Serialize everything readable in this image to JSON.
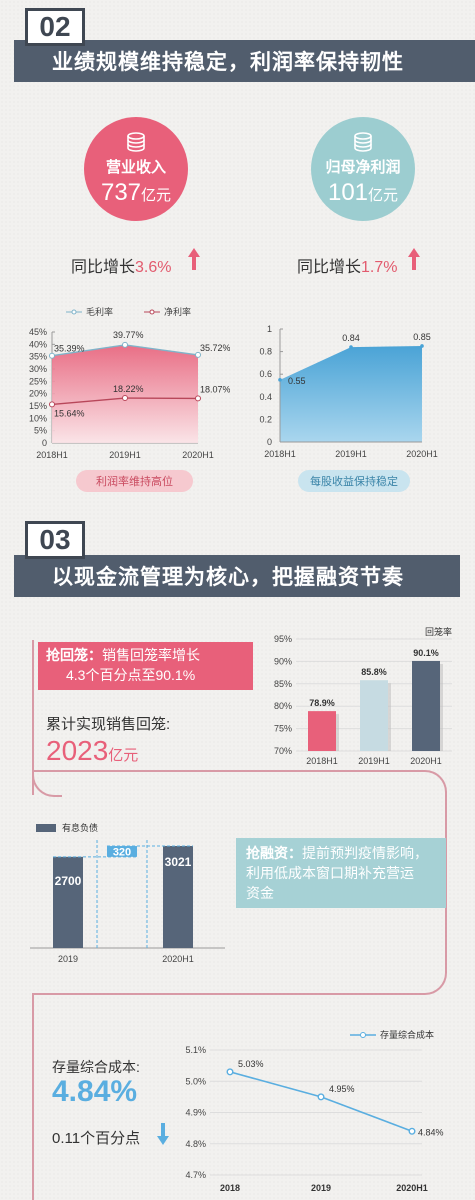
{
  "section2": {
    "number": "02",
    "title": "业绩规模维持稳定，利润率保持韧性",
    "revenue": {
      "label": "营业收入",
      "value": "737",
      "unit": "亿元",
      "yoy_label": "同比增长",
      "yoy_value": "3.6%"
    },
    "profit": {
      "label": "归母净利润",
      "value": "101",
      "unit": "亿元",
      "yoy_label": "同比增长",
      "yoy_value": "1.7%"
    },
    "margin_caption": "利润率维持高位",
    "eps_caption": "每股收益保持稳定"
  },
  "section3": {
    "number": "03",
    "title": "以现金流管理为核心，把握融资节奏",
    "collection": {
      "tag": "抢回笼：",
      "text_line1": "销售回笼率增长",
      "text_line2": "4.3个百分点至90.1%",
      "cum_label": "累计实现销售回笼:",
      "cum_value": "2023",
      "cum_unit": "亿元"
    },
    "financing": {
      "tag": "抢融资：",
      "text_line1": "提前预判疫情影响，",
      "text_line2": "利用低成本窗口期补充营运",
      "text_line3": "资金"
    },
    "cost": {
      "label": "存量综合成本:",
      "value": "4.84%",
      "change": "0.11个百分点"
    }
  },
  "chart_data": [
    {
      "type": "line",
      "x": [
        "2018H1",
        "2019H1",
        "2020H1"
      ],
      "series": [
        {
          "name": "毛利率",
          "values": [
            35.39,
            39.77,
            35.72
          ],
          "labels": [
            "35.39%",
            "39.77%",
            "35.72%"
          ]
        },
        {
          "name": "净利率",
          "values": [
            15.64,
            18.22,
            18.07
          ],
          "labels": [
            "15.64%",
            "18.22%",
            "18.07%"
          ]
        }
      ],
      "yticks": [
        "45%",
        "40%",
        "35%",
        "30%",
        "25%",
        "20%",
        "15%",
        "10%",
        "5%",
        "0"
      ],
      "ylim": [
        0,
        45
      ],
      "legend": "top"
    },
    {
      "type": "area",
      "x": [
        "2018H1",
        "2019H1",
        "2020H1"
      ],
      "values": [
        0.55,
        0.84,
        0.85
      ],
      "labels": [
        "0.55",
        "0.84",
        "0.85"
      ],
      "yticks": [
        "1",
        "0.8",
        "0.6",
        "0.4",
        "0.2",
        "0"
      ],
      "ylim": [
        0,
        1
      ]
    },
    {
      "type": "bar",
      "title": "回笼率",
      "categories": [
        "2018H1",
        "2019H1",
        "2020H1"
      ],
      "values": [
        78.9,
        85.8,
        90.1
      ],
      "labels": [
        "78.9%",
        "85.8%",
        "90.1%"
      ],
      "yticks": [
        "95%",
        "90%",
        "85%",
        "80%",
        "75%",
        "70%"
      ],
      "ylim": [
        70,
        95
      ],
      "colors": [
        "#e8607a",
        "#c6dbe2",
        "#566579"
      ]
    },
    {
      "type": "bar",
      "legend_label": "有息负债",
      "categories": [
        "2019",
        "",
        "2020H1"
      ],
      "values": [
        2700,
        320,
        3021
      ],
      "labels": [
        "2700",
        "320",
        "3021"
      ],
      "colors": [
        "#566579",
        "#5aaee0",
        "#566579"
      ]
    },
    {
      "type": "line",
      "x": [
        "2018",
        "2019",
        "2020H1"
      ],
      "series": [
        {
          "name": "存量综合成本",
          "values": [
            5.03,
            4.95,
            4.84
          ],
          "labels": [
            "5.03%",
            "4.95%",
            "4.84%"
          ]
        }
      ],
      "yticks": [
        "5.1%",
        "5.0%",
        "4.9%",
        "4.8%",
        "4.7%"
      ],
      "ylim": [
        4.7,
        5.1
      ],
      "legend": "top-right"
    }
  ]
}
